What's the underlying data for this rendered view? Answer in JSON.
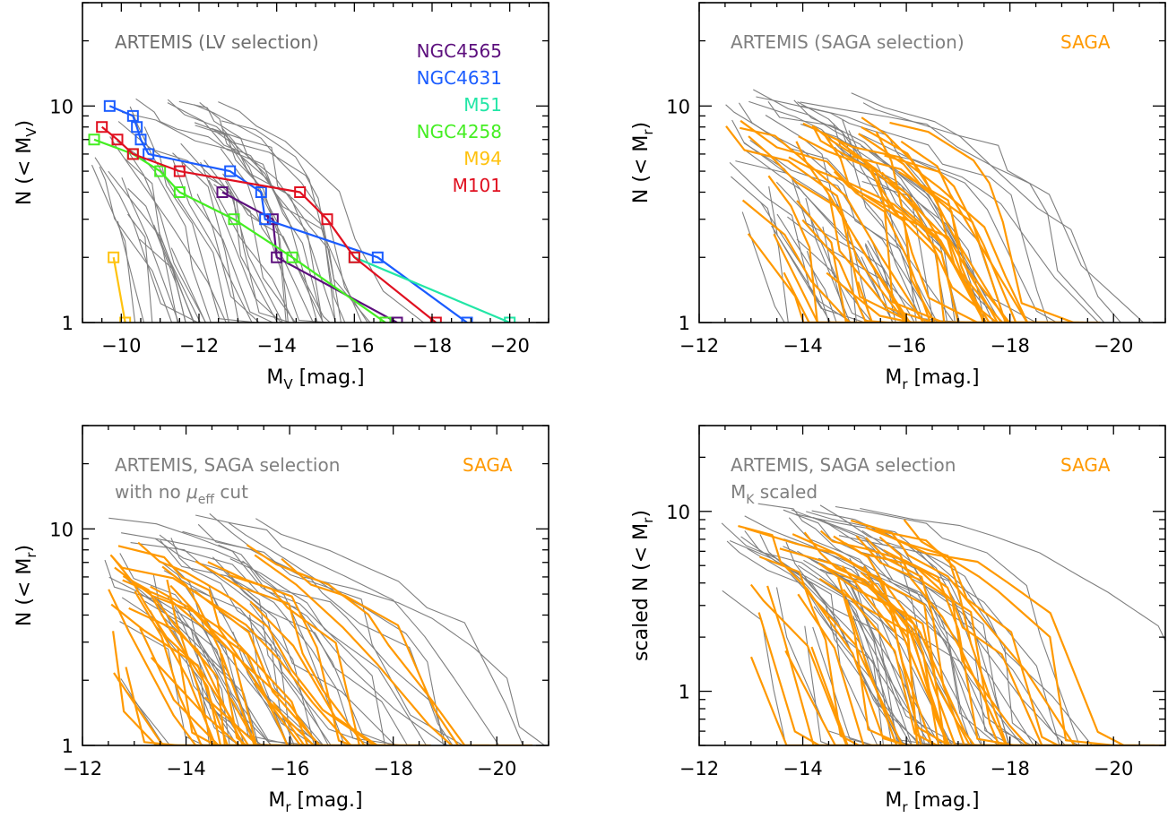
{
  "colors": {
    "artemis": "#7f7f7f",
    "saga": "#ff9900",
    "NGC4565": "#5c0f7d",
    "NGC4631": "#1a5cff",
    "M51": "#22e6a6",
    "NGC4258": "#44ee22",
    "M94": "#ffc20e",
    "M101": "#e01020"
  },
  "chart_data": [
    {
      "type": "line",
      "xlim": [
        -9,
        -21
      ],
      "ylim": [
        1,
        30
      ],
      "yscale": "log",
      "xticks": [
        -10,
        -12,
        -14,
        -16,
        -18,
        -20
      ],
      "xtick_labels": [
        "−10",
        "−12",
        "−14",
        "−16",
        "−18",
        "−20"
      ],
      "yticks": [
        1,
        10
      ],
      "ytick_labels": [
        "1",
        "10"
      ],
      "xlabel": [
        "M",
        "V",
        " [mag.]"
      ],
      "ylabel": [
        "N (< M",
        "V",
        ")"
      ],
      "annotations": [
        {
          "text": "ARTEMIS (LV selection)",
          "color": "#6e6e6e"
        }
      ],
      "legend": {
        "placement": "top-right",
        "entries": [
          {
            "name": "NGC4565",
            "color": "#5c0f7d"
          },
          {
            "name": "NGC4631",
            "color": "#1a5cff"
          },
          {
            "name": "M51",
            "color": "#22e6a6"
          },
          {
            "name": "NGC4258",
            "color": "#44ee22"
          },
          {
            "name": "M94",
            "color": "#ffc20e"
          },
          {
            "name": "M101",
            "color": "#e01020"
          }
        ]
      },
      "background_count": 45,
      "background_color": "#7f7f7f",
      "series": [
        {
          "name": "NGC4565",
          "color": "#5c0f7d",
          "marker": "square",
          "points": [
            [
              -12.6,
              4
            ],
            [
              -13.9,
              3
            ],
            [
              -14.0,
              2
            ],
            [
              -17.1,
              1
            ]
          ]
        },
        {
          "name": "NGC4631",
          "color": "#1a5cff",
          "marker": "square",
          "points": [
            [
              -9.7,
              10
            ],
            [
              -10.3,
              9
            ],
            [
              -10.4,
              8
            ],
            [
              -10.5,
              7
            ],
            [
              -10.7,
              6
            ],
            [
              -12.8,
              5
            ],
            [
              -13.6,
              4
            ],
            [
              -13.7,
              3
            ],
            [
              -16.6,
              2
            ],
            [
              -18.9,
              1
            ]
          ]
        },
        {
          "name": "M51",
          "color": "#22e6a6",
          "marker": "square",
          "points": [
            [
              -16.0,
              2
            ],
            [
              -20.0,
              1
            ]
          ]
        },
        {
          "name": "NGC4258",
          "color": "#44ee22",
          "marker": "square",
          "points": [
            [
              -9.3,
              7
            ],
            [
              -10.3,
              6
            ],
            [
              -11.0,
              5
            ],
            [
              -11.5,
              4
            ],
            [
              -12.9,
              3
            ],
            [
              -14.4,
              2
            ],
            [
              -16.8,
              1
            ]
          ]
        },
        {
          "name": "M94",
          "color": "#ffc20e",
          "marker": "square",
          "points": [
            [
              -9.8,
              2
            ],
            [
              -10.1,
              1
            ]
          ]
        },
        {
          "name": "M101",
          "color": "#e01020",
          "marker": "square",
          "points": [
            [
              -9.5,
              8
            ],
            [
              -9.9,
              7
            ],
            [
              -10.3,
              6
            ],
            [
              -11.5,
              5
            ],
            [
              -14.6,
              4
            ],
            [
              -15.3,
              3
            ],
            [
              -16.0,
              2
            ],
            [
              -18.1,
              1
            ]
          ]
        }
      ]
    },
    {
      "type": "line",
      "xlim": [
        -12,
        -21
      ],
      "ylim": [
        1,
        30
      ],
      "yscale": "log",
      "xticks": [
        -12,
        -14,
        -16,
        -18,
        -20
      ],
      "xtick_labels": [
        "−12",
        "−14",
        "−16",
        "−18",
        "−20"
      ],
      "yticks": [
        1,
        10
      ],
      "ytick_labels": [
        "1",
        "10"
      ],
      "xlabel": [
        "M",
        "r",
        " [mag.]"
      ],
      "ylabel": [
        "N (< M",
        "r",
        ")"
      ],
      "annotations": [
        {
          "text": "ARTEMIS (SAGA selection)",
          "color": "#7f7f7f"
        },
        {
          "text": "SAGA",
          "color": "#ff9900"
        }
      ],
      "series": [
        {
          "name": "ARTEMIS",
          "color": "#7f7f7f",
          "count": 45
        },
        {
          "name": "SAGA",
          "color": "#ff9900",
          "count": 36
        }
      ]
    },
    {
      "type": "line",
      "xlim": [
        -12,
        -21
      ],
      "ylim": [
        1,
        30
      ],
      "yscale": "log",
      "xticks": [
        -12,
        -14,
        -16,
        -18,
        -20
      ],
      "xtick_labels": [
        "−12",
        "−14",
        "−16",
        "−18",
        "−20"
      ],
      "yticks": [
        1,
        10
      ],
      "ytick_labels": [
        "1",
        "10"
      ],
      "xlabel": [
        "M",
        "r",
        " [mag.]"
      ],
      "ylabel": [
        "N (< M",
        "r",
        ")"
      ],
      "annotations": [
        {
          "text": "ARTEMIS, SAGA selection",
          "color": "#7f7f7f"
        },
        {
          "text": "with no ",
          "color": "#7f7f7f",
          "symbol": "μ",
          "subscript": "eff",
          "suffix": " cut"
        },
        {
          "text": "SAGA",
          "color": "#ff9900"
        }
      ],
      "series": [
        {
          "name": "ARTEMIS",
          "color": "#7f7f7f",
          "count": 45
        },
        {
          "name": "SAGA",
          "color": "#ff9900",
          "count": 36
        }
      ]
    },
    {
      "type": "line",
      "xlim": [
        -12,
        -21
      ],
      "ylim": [
        0.5,
        30
      ],
      "yscale": "log",
      "xticks": [
        -12,
        -14,
        -16,
        -18,
        -20
      ],
      "xtick_labels": [
        "−12",
        "−14",
        "−16",
        "−18",
        "−20"
      ],
      "yticks": [
        1,
        10
      ],
      "ytick_labels": [
        "1",
        "10"
      ],
      "xlabel": [
        "M",
        "r",
        " [mag.]"
      ],
      "ylabel": [
        "scaled N (< M",
        "r",
        ")"
      ],
      "annotations": [
        {
          "text": "ARTEMIS, SAGA selection",
          "color": "#7f7f7f"
        },
        {
          "text": "M",
          "color": "#7f7f7f",
          "subscript": "K",
          "suffix": " scaled"
        },
        {
          "text": "SAGA",
          "color": "#ff9900"
        }
      ],
      "series": [
        {
          "name": "ARTEMIS",
          "color": "#7f7f7f",
          "count": 45
        },
        {
          "name": "SAGA",
          "color": "#ff9900",
          "count": 36
        }
      ]
    }
  ]
}
